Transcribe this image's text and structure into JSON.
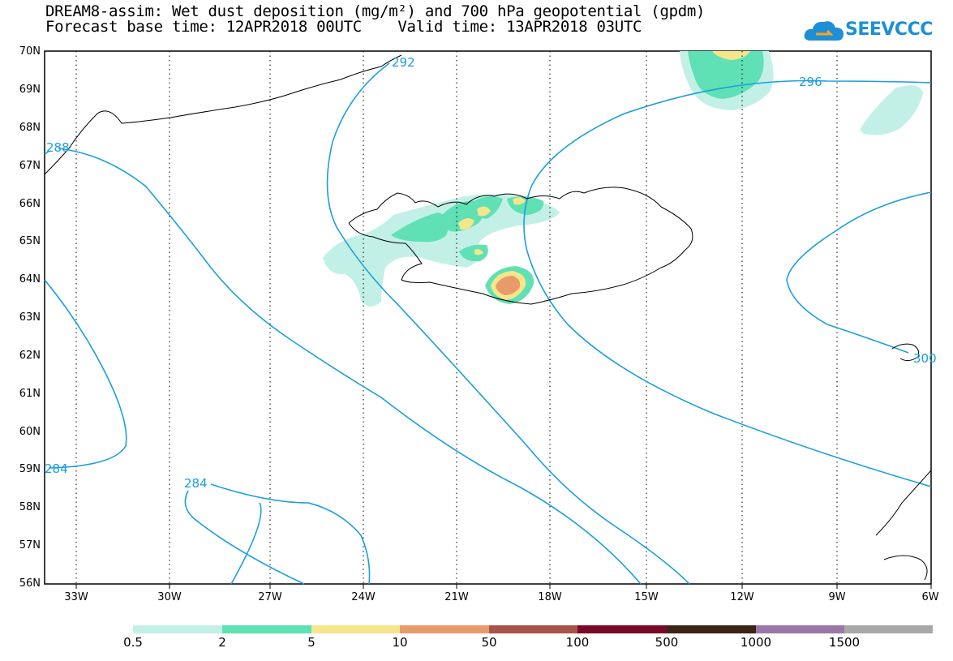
{
  "header": {
    "title_line_1": "DREAM8-assim: Wet dust deposition (mg/m²) and 700 hPa geopotential (gpdm)",
    "title_line_2": "Forecast base time: 12APR2018 00UTC    Valid time: 13APR2018 03UTC",
    "logo_text": "SEEVCCC"
  },
  "map": {
    "lat_labels": [
      "70N",
      "69N",
      "68N",
      "67N",
      "66N",
      "65N",
      "64N",
      "63N",
      "62N",
      "61N",
      "60N",
      "59N",
      "58N",
      "57N",
      "56N"
    ],
    "lon_labels": [
      "33W",
      "30W",
      "27W",
      "24W",
      "21W",
      "18W",
      "15W",
      "12W",
      "9W",
      "6W"
    ],
    "contour_labels": [
      "292",
      "296",
      "288",
      "300",
      "284",
      "284"
    ],
    "contour_color": "#1a9ee0",
    "coast_color": "#000000"
  },
  "legend": {
    "labels": [
      "0.5",
      "2",
      "5",
      "10",
      "50",
      "100",
      "500",
      "1000",
      "1500"
    ],
    "colors": [
      "#c2f0e6",
      "#5fe0b5",
      "#f5e68c",
      "#e99a6a",
      "#a8534b",
      "#7a0a2a",
      "#3a2418",
      "#9b76a8",
      "#a8a8a8"
    ]
  }
}
